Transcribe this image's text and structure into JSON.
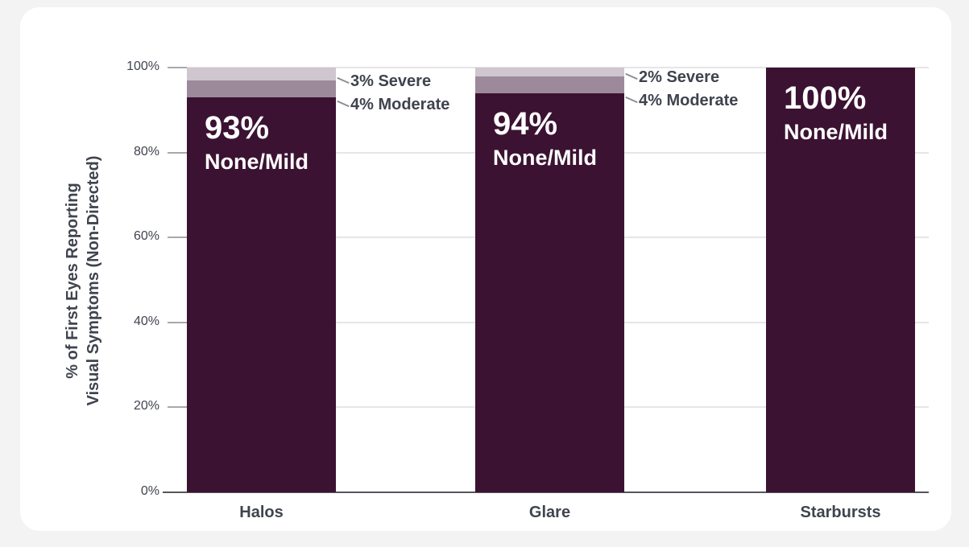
{
  "page": {
    "background_color": "#f3f3f4",
    "card_background_color": "#ffffff"
  },
  "chart_data": {
    "type": "bar",
    "stacked": true,
    "title": "",
    "ylabel": "% of First Eyes Reporting Visual Symptoms (Non-Directed)",
    "ylabel_lines": [
      "% of First Eyes Reporting",
      "Visual Symptoms (Non-Directed)"
    ],
    "categories": [
      "Halos",
      "Glare",
      "Starbursts"
    ],
    "series": [
      {
        "name": "None/Mild",
        "color": "#3b1232",
        "values": [
          93,
          94,
          100
        ]
      },
      {
        "name": "Moderate",
        "color": "#9c8a9b",
        "values": [
          4,
          4,
          0
        ]
      },
      {
        "name": "Severe",
        "color": "#cfc6cf",
        "values": [
          3,
          2,
          0
        ]
      }
    ],
    "ylim": [
      0,
      100
    ],
    "yticks": [
      0,
      20,
      40,
      60,
      80,
      100
    ],
    "ytick_labels": [
      "0%",
      "20%",
      "40%",
      "60%",
      "80%",
      "100%"
    ],
    "grid": "horizontal",
    "legend": "none",
    "bar_value_labels": [
      {
        "value": "93%",
        "label": "None/Mild"
      },
      {
        "value": "94%",
        "label": "None/Mild"
      },
      {
        "value": "100%",
        "label": "None/Mild"
      }
    ],
    "callouts": [
      {
        "category": "Halos",
        "severe_text": "3% Severe",
        "moderate_text": "4% Moderate"
      },
      {
        "category": "Glare",
        "severe_text": "2% Severe",
        "moderate_text": "4% Moderate"
      }
    ],
    "colors": {
      "none_mild": "#3b1232",
      "moderate": "#9c8a9b",
      "severe": "#cfc6cf",
      "axis_text": "#40444e",
      "gridline": "#e6e5e8",
      "axis_line": "#56555d",
      "leader_line": "#8f8d95"
    }
  }
}
